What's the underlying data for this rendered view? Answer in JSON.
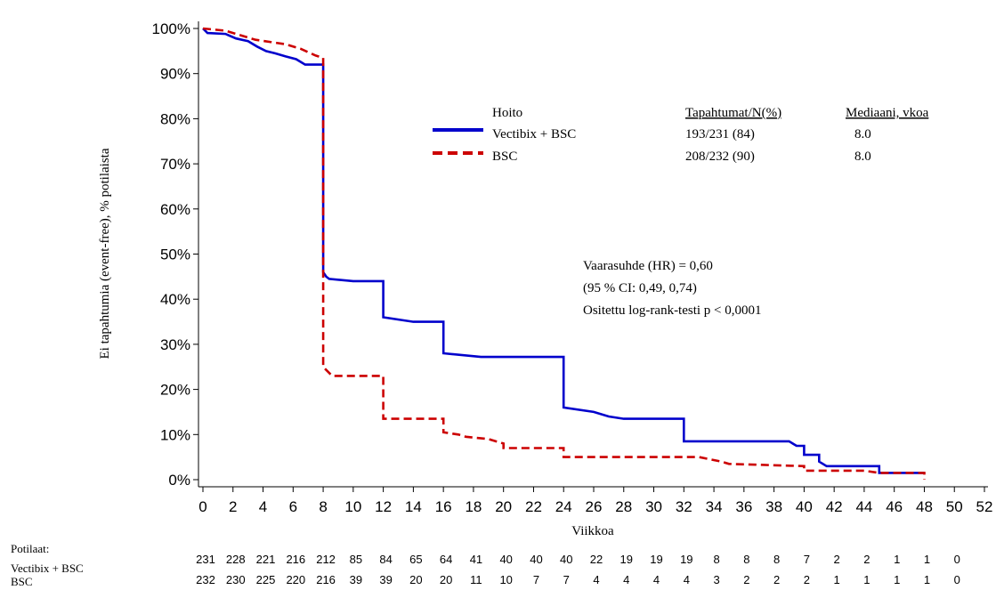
{
  "chart_data": {
    "type": "line",
    "title": "",
    "xlabel": "Viikkoa",
    "ylabel": "Ei tapahtumia (event-free), % potilaista",
    "xlim": [
      0,
      52
    ],
    "ylim": [
      0,
      100
    ],
    "x_ticks": [
      "0",
      "2",
      "4",
      "6",
      "8",
      "10",
      "12",
      "14",
      "16",
      "18",
      "20",
      "22",
      "24",
      "26",
      "28",
      "30",
      "32",
      "34",
      "36",
      "38",
      "40",
      "42",
      "44",
      "46",
      "48",
      "50",
      "52"
    ],
    "y_ticks": [
      "0%",
      "10%",
      "20%",
      "30%",
      "40%",
      "50%",
      "60%",
      "70%",
      "80%",
      "90%",
      "100%"
    ],
    "grid": false,
    "legend": {
      "header_group": "Hoito",
      "header_events": "Tapahtumat/N(%)",
      "header_median": "Mediaani, vkoa",
      "rows": [
        {
          "name": "Vectibix + BSC",
          "events": "193/231 (84)",
          "median": "8.0"
        },
        {
          "name": "BSC",
          "events": "208/232 (90)",
          "median": "8.0"
        }
      ]
    },
    "annotation": [
      "Vaarasuhde (HR) = 0,60",
      "(95 % CI: 0,49, 0,74)",
      "Ositettu log-rank-testi p < 0,0001"
    ],
    "series": [
      {
        "name": "Vectibix + BSC",
        "color": "#0000cc",
        "style": "solid",
        "points": [
          [
            0,
            100
          ],
          [
            0.3,
            99
          ],
          [
            1.5,
            98.8
          ],
          [
            2.2,
            97.8
          ],
          [
            3,
            97.2
          ],
          [
            3.6,
            96
          ],
          [
            4.2,
            95
          ],
          [
            4.8,
            94.5
          ],
          [
            5.5,
            93.8
          ],
          [
            6.2,
            93.2
          ],
          [
            6.8,
            92
          ],
          [
            8,
            92
          ],
          [
            8,
            46
          ],
          [
            8.2,
            45
          ],
          [
            8.4,
            44.5
          ],
          [
            10,
            44
          ],
          [
            12,
            44
          ],
          [
            12,
            36
          ],
          [
            14,
            35
          ],
          [
            16,
            35
          ],
          [
            16,
            28
          ],
          [
            18.5,
            27.2
          ],
          [
            24,
            27.2
          ],
          [
            24,
            16
          ],
          [
            26,
            15
          ],
          [
            27,
            14
          ],
          [
            28,
            13.5
          ],
          [
            32,
            13.5
          ],
          [
            32,
            8.5
          ],
          [
            39,
            8.5
          ],
          [
            39.5,
            7.5
          ],
          [
            40,
            7.5
          ],
          [
            40,
            5.5
          ],
          [
            41,
            5.5
          ],
          [
            41,
            4
          ],
          [
            41.5,
            3
          ],
          [
            45,
            3
          ],
          [
            45,
            1.5
          ],
          [
            48,
            1.5
          ]
        ]
      },
      {
        "name": "BSC",
        "color": "#cc0000",
        "style": "dashed",
        "points": [
          [
            0,
            100
          ],
          [
            1.5,
            99.5
          ],
          [
            2.5,
            98.5
          ],
          [
            3.5,
            97.5
          ],
          [
            5.5,
            96.5
          ],
          [
            6.5,
            95.5
          ],
          [
            7.5,
            94
          ],
          [
            8,
            93.5
          ],
          [
            8,
            25
          ],
          [
            8.3,
            24
          ],
          [
            8.6,
            23
          ],
          [
            12,
            23
          ],
          [
            12,
            13.5
          ],
          [
            16,
            13.5
          ],
          [
            16,
            10.5
          ],
          [
            17,
            10
          ],
          [
            17.5,
            9.5
          ],
          [
            19,
            9
          ],
          [
            20,
            8
          ],
          [
            20,
            7
          ],
          [
            24,
            7
          ],
          [
            24,
            5
          ],
          [
            33,
            5
          ],
          [
            34.5,
            4
          ],
          [
            35,
            3.5
          ],
          [
            40,
            3
          ],
          [
            40,
            2
          ],
          [
            44,
            2
          ],
          [
            45,
            1.5
          ],
          [
            48,
            1.5
          ],
          [
            48,
            0
          ]
        ]
      }
    ],
    "risk_table": {
      "title": "Potilaat:",
      "x": [
        0,
        2,
        4,
        6,
        8,
        10,
        12,
        14,
        16,
        18,
        20,
        22,
        24,
        26,
        28,
        30,
        32,
        34,
        36,
        38,
        40,
        42,
        44,
        46,
        48,
        50
      ],
      "rows": [
        {
          "name": "Vectibix + BSC",
          "values": [
            231,
            228,
            221,
            216,
            212,
            85,
            84,
            65,
            64,
            41,
            40,
            40,
            40,
            22,
            19,
            19,
            19,
            8,
            8,
            8,
            7,
            2,
            2,
            1,
            1,
            0
          ]
        },
        {
          "name": "BSC",
          "values": [
            232,
            230,
            225,
            220,
            216,
            39,
            39,
            20,
            20,
            11,
            10,
            7,
            7,
            4,
            4,
            4,
            4,
            3,
            2,
            2,
            2,
            1,
            1,
            1,
            1,
            0
          ]
        }
      ]
    }
  }
}
